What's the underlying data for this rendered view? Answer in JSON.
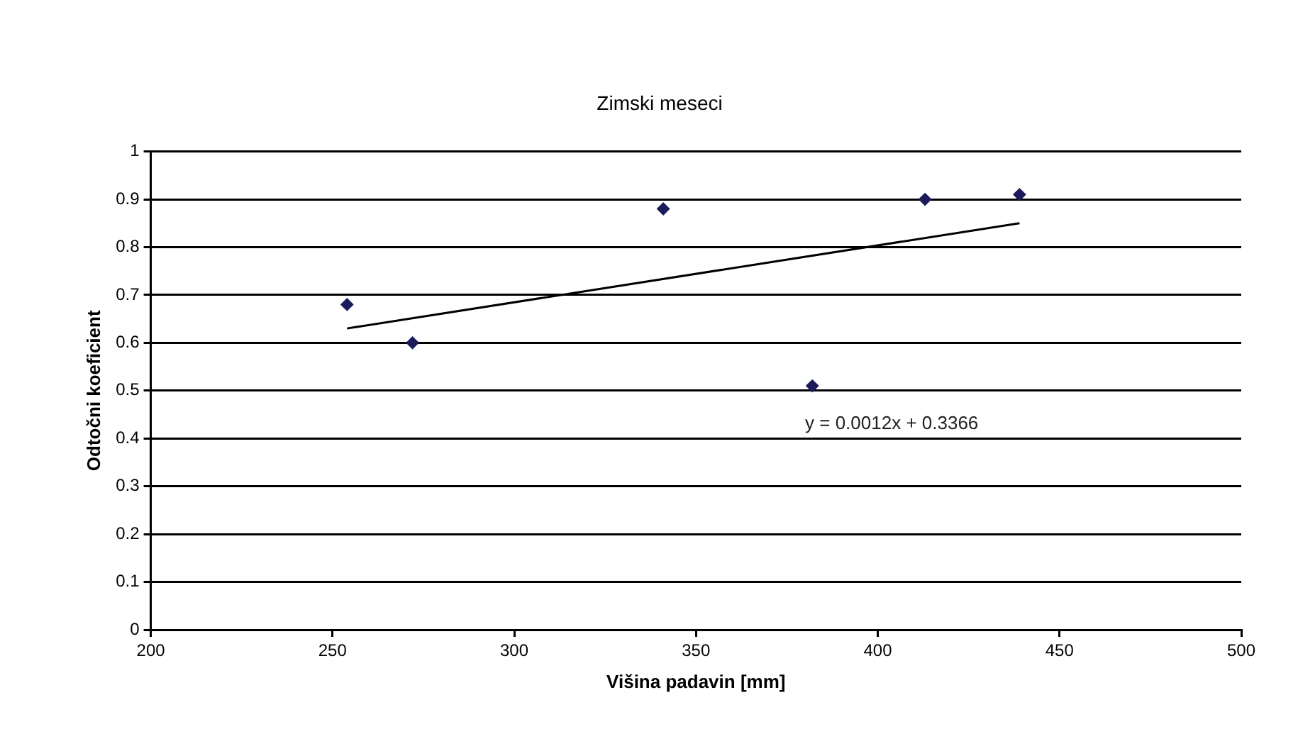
{
  "chart_data": {
    "type": "scatter",
    "title": "Zimski meseci",
    "xlabel": "Višina padavin [mm]",
    "ylabel": "Odtočni koeficient",
    "series": [
      {
        "type": "scatter",
        "color": "#1c1c5c",
        "x": [
          254,
          272,
          341,
          382,
          413,
          439
        ],
        "values": [
          0.68,
          0.6,
          0.88,
          0.51,
          0.9,
          0.91
        ]
      },
      {
        "type": "line",
        "color": "#000000",
        "marker": "none",
        "x": [
          254,
          439
        ],
        "values": [
          0.63,
          0.85
        ]
      }
    ],
    "xlim": [
      200,
      500
    ],
    "xticks": [
      200,
      250,
      300,
      350,
      400,
      450,
      500
    ],
    "ylim": [
      0,
      1
    ],
    "yticks": [
      0,
      0.1,
      0.2,
      0.3,
      0.4,
      0.5,
      0.6,
      0.7,
      0.8,
      0.9,
      1
    ],
    "grid": "y",
    "legend": false,
    "marker": "diamond",
    "annotations": [
      "y = 0.0012x + 0.3366"
    ]
  }
}
